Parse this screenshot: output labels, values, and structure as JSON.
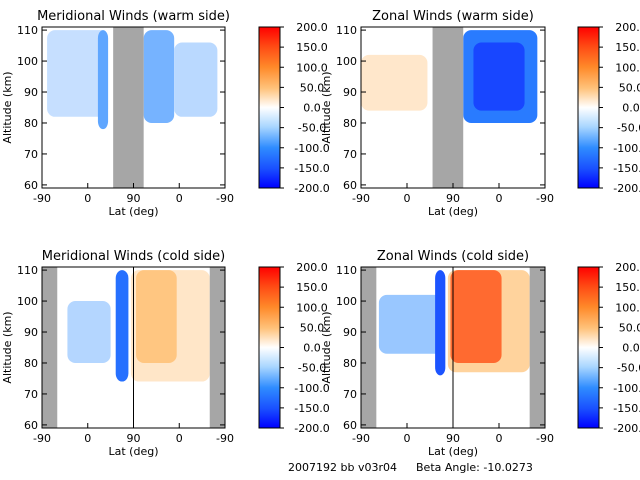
{
  "footer": {
    "run_info": "2007192 bb v03r04",
    "beta_label": "Beta Angle: -10.0273"
  },
  "colors": {
    "negative_max": "#0000ff",
    "negative_mid": "#2f8cff",
    "zero": "#ffffff",
    "positive_mid": "#ffb050",
    "positive_max": "#ff0000",
    "no_data": "#a6a6a6"
  },
  "chart_data": [
    {
      "type": "heatmap",
      "title": "Meridional Winds (warm side)",
      "xlabel": "Lat (deg)",
      "ylabel": "Altitude (km)",
      "x_tick_labels": [
        "-90",
        "0",
        "90",
        "0",
        "-90"
      ],
      "y_ticks": [
        60,
        70,
        80,
        90,
        100,
        110
      ],
      "ylim": [
        59,
        111
      ],
      "x_span": [
        0,
        360
      ],
      "colorbar": {
        "ticks": [
          "200.0",
          "150.0",
          "100.0",
          "50.0",
          "0.0",
          "-50.0",
          "-100.0",
          "-150.0",
          "-200.0"
        ],
        "range": [
          -200,
          200
        ]
      },
      "no_data_bands": [
        [
          140,
          200
        ]
      ],
      "vertical_lines": [],
      "value_range_shown": [
        -110,
        40
      ],
      "data_extent": {
        "left": [
          -10,
          130
        ],
        "right": [
          200,
          345
        ]
      }
    },
    {
      "type": "heatmap",
      "title": "Zonal Winds (warm side)",
      "xlabel": "Lat (deg)",
      "ylabel": "Altitude (km)",
      "x_tick_labels": [
        "-90",
        "0",
        "90",
        "0",
        "-90"
      ],
      "y_ticks": [
        60,
        70,
        80,
        90,
        100,
        110
      ],
      "ylim": [
        59,
        111
      ],
      "x_span": [
        0,
        360
      ],
      "colorbar": {
        "ticks": [
          "200.0",
          "150.0",
          "100.0",
          "50.0",
          "0.0",
          "-50.0",
          "-100.0",
          "-150.0",
          "-200.0"
        ],
        "range": [
          -200,
          200
        ]
      },
      "no_data_bands": [
        [
          140,
          200
        ]
      ],
      "vertical_lines": [],
      "value_range_shown": [
        -150,
        60
      ],
      "data_extent": {
        "left": [
          0,
          130
        ],
        "right": [
          200,
          360
        ]
      }
    },
    {
      "type": "heatmap",
      "title": "Meridional Winds (cold side)",
      "xlabel": "Lat (deg)",
      "ylabel": "Altitude (km)",
      "x_tick_labels": [
        "-90",
        "0",
        "90",
        "0",
        "-90"
      ],
      "y_ticks": [
        60,
        70,
        80,
        90,
        100,
        110
      ],
      "ylim": [
        59,
        111
      ],
      "x_span": [
        0,
        360
      ],
      "colorbar": {
        "ticks": [
          "200.0",
          "150.0",
          "100.0",
          "50.0",
          "0.0",
          "-50.0",
          "-100.0",
          "-150.0",
          "-200.0"
        ],
        "range": [
          -200,
          200
        ]
      },
      "no_data_bands": [
        [
          0,
          30
        ],
        [
          330,
          360
        ]
      ],
      "vertical_lines": [
        180
      ],
      "value_range_shown": [
        -120,
        90
      ],
      "data_extent": {
        "left": [
          30,
          175
        ],
        "right": [
          175,
          330
        ]
      }
    },
    {
      "type": "heatmap",
      "title": "Zonal Winds (cold side)",
      "xlabel": "Lat (deg)",
      "ylabel": "Altitude (km)",
      "x_tick_labels": [
        "-90",
        "0",
        "90",
        "0",
        "-90"
      ],
      "y_ticks": [
        60,
        70,
        80,
        90,
        100,
        110
      ],
      "ylim": [
        59,
        111
      ],
      "x_span": [
        0,
        360
      ],
      "colorbar": {
        "ticks": [
          "200.0",
          "150.0",
          "100.0",
          "50.0",
          "0.0",
          "-50.0",
          "-100.0",
          "-150.0",
          "-200.0"
        ],
        "range": [
          -200,
          200
        ]
      },
      "no_data_bands": [
        [
          0,
          30
        ],
        [
          330,
          360
        ]
      ],
      "vertical_lines": [
        180
      ],
      "value_range_shown": [
        -140,
        140
      ],
      "data_extent": {
        "left": [
          30,
          175
        ],
        "right": [
          175,
          330
        ]
      }
    }
  ]
}
